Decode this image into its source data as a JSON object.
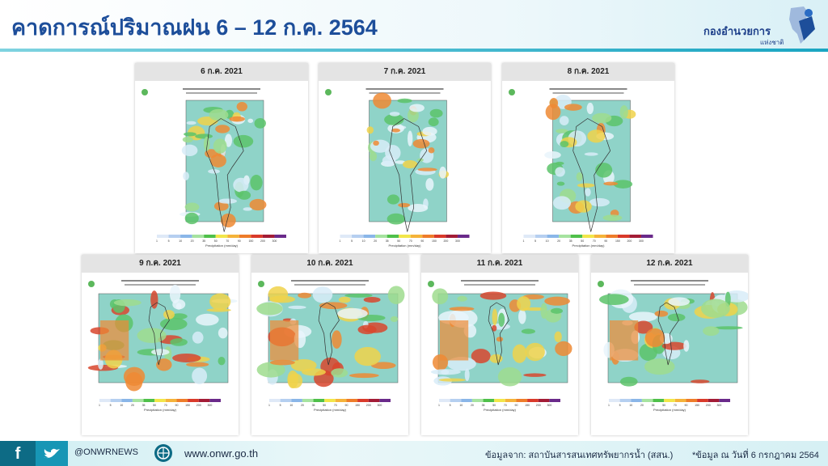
{
  "header": {
    "title": "คาดการณ์ปริมาณฝน 6 – 12 ก.ค. 2564",
    "logo_text": "กองอำนวยการ",
    "logo_sub": "แห่งชาติ"
  },
  "panels": [
    {
      "title": "6 ก.ค. 2021"
    },
    {
      "title": "7 ก.ค. 2021"
    },
    {
      "title": "8 ก.ค. 2021"
    },
    {
      "title": "9 ก.ค. 2021"
    },
    {
      "title": "10 ก.ค. 2021"
    },
    {
      "title": "11 ก.ค. 2021"
    },
    {
      "title": "12 ก.ค. 2021"
    }
  ],
  "colorbar": {
    "label": "Precipitation (mm/day)",
    "ticks": [
      "1",
      "5",
      "10",
      "20",
      "35",
      "50",
      "70",
      "90",
      "150",
      "200",
      "300"
    ]
  },
  "footer": {
    "social": "@ONWRNEWS",
    "website": "www.onwr.go.th",
    "source": "ข้อมูลจาก: สถาบันสารสนเทศทรัพยากรน้ำ (สสน.)",
    "note": "*ข้อมูล ณ วันที่ 6 กรกฎาคม 2564"
  }
}
